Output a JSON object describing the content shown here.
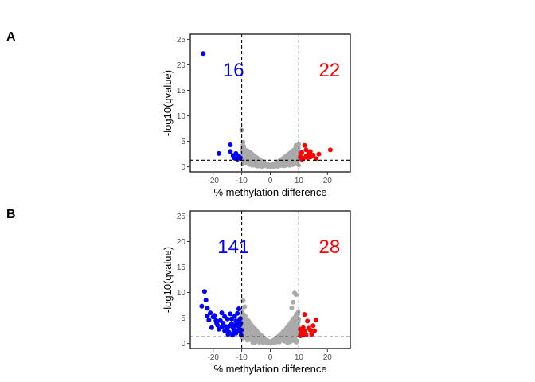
{
  "panels": [
    {
      "letter": "A",
      "xlabel": "% methylation difference",
      "ylabel": "-log10(qvalue)",
      "hypo_count": "16",
      "hyper_count": "22"
    },
    {
      "letter": "B",
      "xlabel": "% methylation difference",
      "ylabel": "-log10(qvalue)",
      "hypo_count": "141",
      "hyper_count": "28"
    }
  ],
  "colors": {
    "hypo": "#0000ff",
    "hyper": "#ff0000",
    "nonsig": "#aaaaaa"
  },
  "chart_data": [
    {
      "type": "scatter",
      "title": "",
      "xlabel": "% methylation difference",
      "ylabel": "-log10(qvalue)",
      "xlim": [
        -28,
        28
      ],
      "ylim": [
        -1,
        26
      ],
      "xticks": [
        -20,
        -10,
        0,
        10,
        20
      ],
      "yticks": [
        0,
        5,
        10,
        15,
        20,
        25
      ],
      "grid": false,
      "thresholds": {
        "x": [
          -10,
          10
        ],
        "y": 1.3
      },
      "annotations": {
        "hypo_count": "16",
        "hyper_count": "22"
      },
      "nonsig_cloud": {
        "x_range": [
          -10,
          10
        ],
        "y_max_at_edges": 4.5,
        "y_min": 0
      },
      "series": [
        {
          "color": "hypo",
          "points": [
            [
              -23.5,
              22.2
            ],
            [
              -18,
              2.6
            ],
            [
              -14,
              4.3
            ],
            [
              -14,
              3.0
            ],
            [
              -13,
              2.2
            ],
            [
              -12.5,
              1.7
            ],
            [
              -12,
              2.6
            ],
            [
              -11.5,
              1.5
            ],
            [
              -11,
              2.0
            ],
            [
              -10.5,
              1.8
            ]
          ]
        },
        {
          "color": "hyper",
          "points": [
            [
              10.5,
              2.0
            ],
            [
              11,
              2.8
            ],
            [
              11.5,
              1.6
            ],
            [
              12,
              4.2
            ],
            [
              12.5,
              2.1
            ],
            [
              13,
              1.8
            ],
            [
              13.5,
              2.6
            ],
            [
              14,
              3.0
            ],
            [
              15,
              2.3
            ],
            [
              16,
              1.6
            ],
            [
              17,
              2.5
            ],
            [
              21,
              3.3
            ],
            [
              11,
              1.5
            ],
            [
              12.5,
              3.3
            ],
            [
              14,
              1.9
            ]
          ]
        },
        {
          "color": "nonsig",
          "points": [
            [
              -10,
              7.2
            ],
            [
              -9.5,
              4.8
            ],
            [
              9,
              4.2
            ],
            [
              9.5,
              3.8
            ]
          ]
        }
      ]
    },
    {
      "type": "scatter",
      "title": "",
      "xlabel": "% methylation difference",
      "ylabel": "-log10(qvalue)",
      "xlim": [
        -28,
        28
      ],
      "ylim": [
        -1,
        26
      ],
      "xticks": [
        -20,
        -10,
        0,
        10,
        20
      ],
      "yticks": [
        0,
        5,
        10,
        15,
        20,
        25
      ],
      "grid": false,
      "thresholds": {
        "x": [
          -10,
          10
        ],
        "y": 1.3
      },
      "annotations": {
        "hypo_count": "141",
        "hyper_count": "28"
      },
      "nonsig_cloud": {
        "x_range": [
          -10,
          10
        ],
        "y_max_at_edges": 6.5,
        "y_min": 0
      },
      "series": [
        {
          "color": "hypo",
          "points": [
            [
              -23,
              10.2
            ],
            [
              -22.5,
              8.5
            ],
            [
              -22,
              6.9
            ],
            [
              -24,
              7.3
            ],
            [
              -21,
              6.0
            ],
            [
              -20,
              5.2
            ],
            [
              -19,
              4.5
            ],
            [
              -18.5,
              3.6
            ],
            [
              -17,
              6.0
            ],
            [
              -16,
              2.5
            ],
            [
              -15,
              4.8
            ],
            [
              -14,
              5.8
            ],
            [
              -13.5,
              3.9
            ],
            [
              -13,
              3.1
            ],
            [
              -12,
              4.4
            ],
            [
              -12,
              2.0
            ],
            [
              -11.5,
              5.9
            ],
            [
              -11,
              6.8
            ],
            [
              -11,
              3.3
            ],
            [
              -10.5,
              4.9
            ],
            [
              -10.5,
              2.3
            ],
            [
              -10.2,
              1.6
            ],
            [
              -20.5,
              3.1
            ],
            [
              -18,
              2.8
            ],
            [
              -16.5,
              4.0
            ],
            [
              -15.5,
              3.3
            ],
            [
              -14.5,
              2.2
            ],
            [
              -13,
              1.9
            ],
            [
              -12.5,
              5.3
            ],
            [
              -11.8,
              3.9
            ],
            [
              -10.8,
              2.8
            ],
            [
              -10.3,
              4.0
            ],
            [
              -19.5,
              5.5
            ],
            [
              -17.5,
              4.5
            ],
            [
              -16,
              5.3
            ],
            [
              -15,
              2.9
            ],
            [
              -14,
              3.5
            ],
            [
              -13.5,
              4.8
            ],
            [
              -12.8,
              2.6
            ],
            [
              -12.3,
              3.5
            ],
            [
              -11.2,
              4.4
            ],
            [
              -10.6,
              3.6
            ],
            [
              -10.1,
              2.6
            ],
            [
              -11.7,
              2.5
            ],
            [
              -13.2,
              1.6
            ],
            [
              -14.8,
              1.8
            ],
            [
              -17,
              3.2
            ],
            [
              -18.8,
              4.0
            ],
            [
              -21.5,
              4.6
            ],
            [
              -22,
              5.4
            ]
          ]
        },
        {
          "color": "hyper",
          "points": [
            [
              12,
              5.7
            ],
            [
              13,
              4.4
            ],
            [
              11.5,
              3.1
            ],
            [
              11,
              2.2
            ],
            [
              12.5,
              1.7
            ],
            [
              14,
              2.6
            ],
            [
              15,
              3.5
            ],
            [
              15.5,
              2.5
            ],
            [
              16,
              4.6
            ],
            [
              13.5,
              3.0
            ],
            [
              12,
              2.5
            ],
            [
              14.5,
              1.8
            ],
            [
              11.5,
              1.6
            ],
            [
              10.5,
              2.8
            ],
            [
              10.5,
              1.5
            ]
          ]
        },
        {
          "color": "nonsig",
          "points": [
            [
              -9.5,
              8.4
            ],
            [
              -9,
              7.2
            ],
            [
              8,
              8.1
            ],
            [
              8.5,
              9.9
            ],
            [
              9,
              9.6
            ],
            [
              7.5,
              7.0
            ]
          ]
        }
      ]
    }
  ]
}
